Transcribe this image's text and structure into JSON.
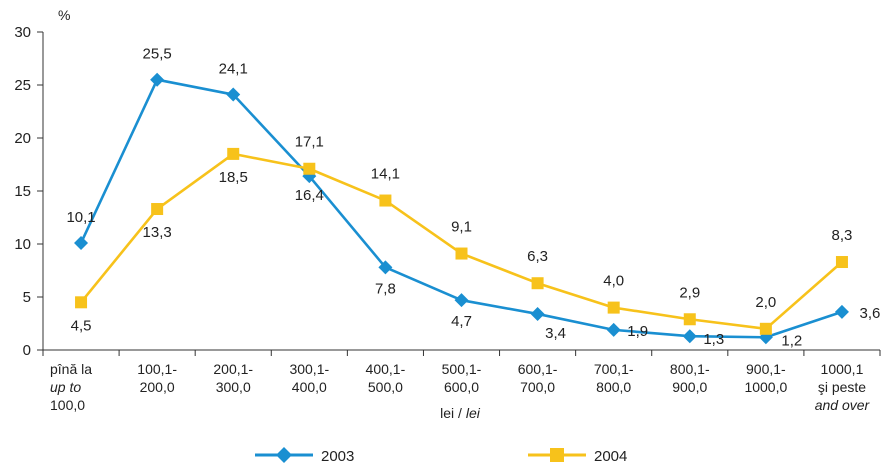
{
  "chart_data": {
    "type": "line",
    "ylabel": "%",
    "xlabel": "lei / ",
    "xlabel_italic": "lei",
    "ylim": [
      0,
      30
    ],
    "yticks": [
      "0",
      "5",
      "10",
      "15",
      "20",
      "25",
      "30"
    ],
    "categories": [
      {
        "lines": [
          "pînă la",
          "up to",
          "100,0"
        ],
        "italic": [
          false,
          true,
          false
        ]
      },
      {
        "lines": [
          "100,1-",
          "200,0"
        ],
        "italic": [
          false,
          false
        ]
      },
      {
        "lines": [
          "200,1-",
          "300,0"
        ],
        "italic": [
          false,
          false
        ]
      },
      {
        "lines": [
          "300,1-",
          "400,0"
        ],
        "italic": [
          false,
          false
        ]
      },
      {
        "lines": [
          "400,1-",
          "500,0"
        ],
        "italic": [
          false,
          false
        ]
      },
      {
        "lines": [
          "500,1-",
          "600,0"
        ],
        "italic": [
          false,
          false
        ]
      },
      {
        "lines": [
          "600,1-",
          "700,0"
        ],
        "italic": [
          false,
          false
        ]
      },
      {
        "lines": [
          "700,1-",
          "800,0"
        ],
        "italic": [
          false,
          false
        ]
      },
      {
        "lines": [
          "800,1-",
          "900,0"
        ],
        "italic": [
          false,
          false
        ]
      },
      {
        "lines": [
          "900,1-",
          "1000,0"
        ],
        "italic": [
          false,
          false
        ]
      },
      {
        "lines": [
          "1000,1",
          "şi peste",
          "and over"
        ],
        "italic": [
          false,
          false,
          true
        ]
      }
    ],
    "series": [
      {
        "name": "2003",
        "color": "#1a8fd1",
        "marker": "diamond",
        "values": [
          10.1,
          25.5,
          24.1,
          16.4,
          7.8,
          4.7,
          3.4,
          1.9,
          1.3,
          1.2,
          3.6
        ],
        "labels": [
          "10,1",
          "25,5",
          "24,1",
          "16,4",
          "7,8",
          "4,7",
          "3,4",
          "1,9",
          "1,3",
          "1,2",
          "3,6"
        ]
      },
      {
        "name": "2004",
        "color": "#f7c21b",
        "marker": "square",
        "values": [
          4.5,
          13.3,
          18.5,
          17.1,
          14.1,
          9.1,
          6.3,
          4.0,
          2.9,
          2.0,
          8.3
        ],
        "labels": [
          "4,5",
          "13,3",
          "18,5",
          "17,1",
          "14,1",
          "9,1",
          "6,3",
          "4,0",
          "2,9",
          "2,0",
          "8,3"
        ]
      }
    ],
    "legend_position": "bottom"
  }
}
